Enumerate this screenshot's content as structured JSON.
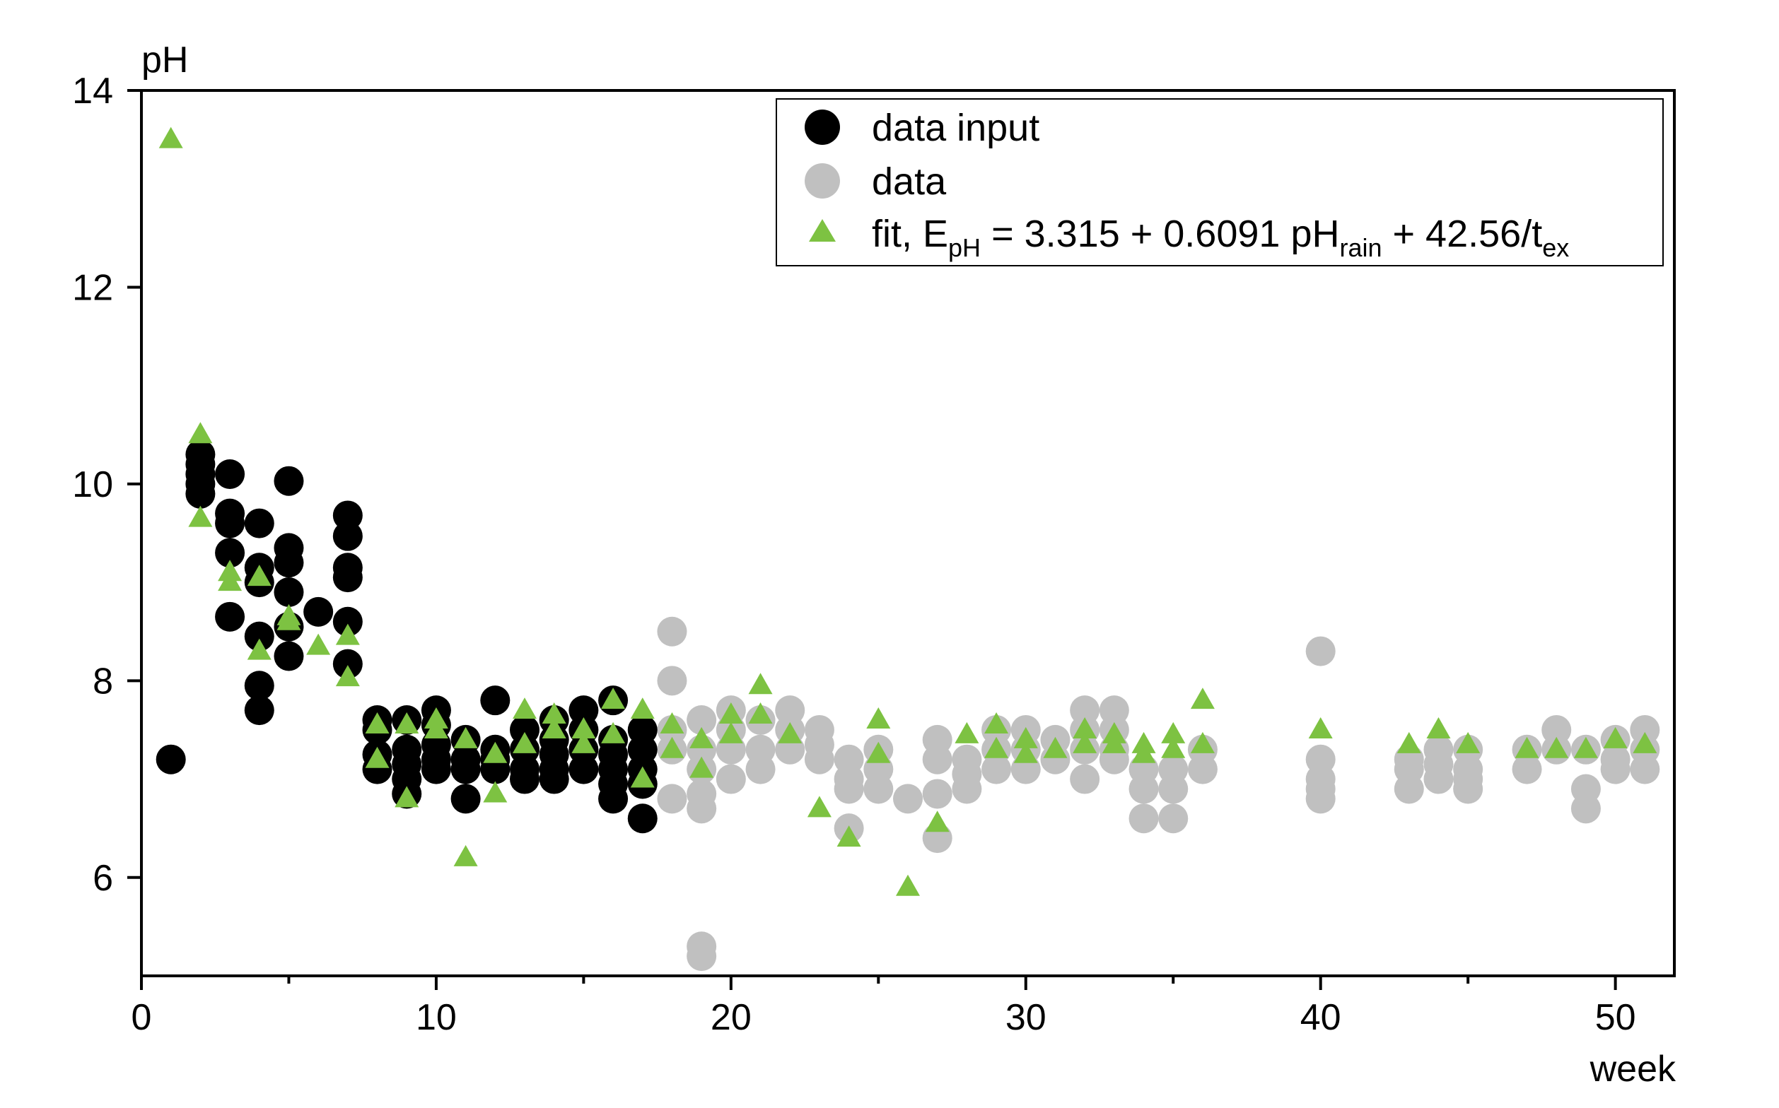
{
  "chart_data": {
    "type": "scatter",
    "xlabel": "week",
    "ylabel": "pH",
    "xlim": [
      0,
      52
    ],
    "ylim": [
      5,
      14
    ],
    "x_ticks": [
      0,
      10,
      20,
      30,
      40,
      50
    ],
    "y_ticks": [
      6,
      8,
      10,
      12,
      14
    ],
    "x_minor_ticks": [
      5,
      15,
      25,
      35,
      45
    ],
    "legend_position": "top-right",
    "grid": false,
    "colors": {
      "data_input": "#000000",
      "data": "#c0c0c0",
      "fit": "#7dc242"
    },
    "legend": {
      "data_input": "data input",
      "data": "data",
      "fit": {
        "prefix": "fit, E",
        "sub1": "pH",
        "mid": " = 3.315 + 0.6091 pH",
        "sub2": "rain",
        "mid2": " + 42.56/t",
        "sub3": "ex"
      }
    },
    "series": [
      {
        "name": "data input",
        "marker": "circle",
        "points": [
          [
            1,
            7.2
          ],
          [
            2,
            10.3
          ],
          [
            2,
            10.2
          ],
          [
            2,
            10.1
          ],
          [
            2,
            10.0
          ],
          [
            2,
            9.9
          ],
          [
            3,
            10.1
          ],
          [
            3,
            9.7
          ],
          [
            3,
            9.6
          ],
          [
            3,
            9.3
          ],
          [
            3,
            8.65
          ],
          [
            4,
            9.6
          ],
          [
            4,
            9.15
          ],
          [
            4,
            9.0
          ],
          [
            4,
            8.45
          ],
          [
            4,
            7.95
          ],
          [
            4,
            7.7
          ],
          [
            5,
            10.03
          ],
          [
            5,
            9.35
          ],
          [
            5,
            9.2
          ],
          [
            5,
            8.9
          ],
          [
            5,
            8.55
          ],
          [
            5,
            8.25
          ],
          [
            6,
            8.7
          ],
          [
            7,
            9.68
          ],
          [
            7,
            9.47
          ],
          [
            7,
            9.15
          ],
          [
            7,
            9.05
          ],
          [
            7,
            8.6
          ],
          [
            7,
            8.17
          ],
          [
            8,
            7.6
          ],
          [
            8,
            7.5
          ],
          [
            8,
            7.25
          ],
          [
            8,
            7.1
          ],
          [
            9,
            7.6
          ],
          [
            9,
            7.3
          ],
          [
            9,
            7.15
          ],
          [
            9,
            7.0
          ],
          [
            9,
            6.85
          ],
          [
            10,
            7.7
          ],
          [
            10,
            7.55
          ],
          [
            10,
            7.35
          ],
          [
            10,
            7.2
          ],
          [
            10,
            7.1
          ],
          [
            11,
            7.4
          ],
          [
            11,
            7.2
          ],
          [
            11,
            7.1
          ],
          [
            11,
            6.8
          ],
          [
            12,
            7.8
          ],
          [
            12,
            7.3
          ],
          [
            12,
            7.2
          ],
          [
            12,
            7.1
          ],
          [
            13,
            7.5
          ],
          [
            13,
            7.3
          ],
          [
            13,
            7.1
          ],
          [
            13,
            7.0
          ],
          [
            14,
            7.6
          ],
          [
            14,
            7.4
          ],
          [
            14,
            7.25
          ],
          [
            14,
            7.1
          ],
          [
            14,
            7.0
          ],
          [
            15,
            7.7
          ],
          [
            15,
            7.5
          ],
          [
            15,
            7.3
          ],
          [
            15,
            7.1
          ],
          [
            16,
            7.8
          ],
          [
            16,
            7.4
          ],
          [
            16,
            7.25
          ],
          [
            16,
            7.1
          ],
          [
            16,
            6.95
          ],
          [
            16,
            6.8
          ],
          [
            17,
            7.5
          ],
          [
            17,
            7.3
          ],
          [
            17,
            7.1
          ],
          [
            17,
            6.95
          ],
          [
            17,
            6.6
          ]
        ]
      },
      {
        "name": "data",
        "marker": "circle",
        "points": [
          [
            18,
            8.5
          ],
          [
            18,
            8.0
          ],
          [
            18,
            7.5
          ],
          [
            18,
            7.3
          ],
          [
            18,
            6.8
          ],
          [
            19,
            7.6
          ],
          [
            19,
            7.3
          ],
          [
            19,
            7.1
          ],
          [
            19,
            6.85
          ],
          [
            19,
            6.7
          ],
          [
            19,
            5.3
          ],
          [
            19,
            5.2
          ],
          [
            20,
            7.7
          ],
          [
            20,
            7.5
          ],
          [
            20,
            7.3
          ],
          [
            20,
            7.0
          ],
          [
            21,
            7.6
          ],
          [
            21,
            7.3
          ],
          [
            21,
            7.1
          ],
          [
            22,
            7.7
          ],
          [
            22,
            7.5
          ],
          [
            22,
            7.3
          ],
          [
            23,
            7.5
          ],
          [
            23,
            7.35
          ],
          [
            23,
            7.2
          ],
          [
            24,
            7.2
          ],
          [
            24,
            7.0
          ],
          [
            24,
            6.9
          ],
          [
            24,
            6.5
          ],
          [
            25,
            7.3
          ],
          [
            25,
            7.1
          ],
          [
            25,
            6.9
          ],
          [
            26,
            6.8
          ],
          [
            27,
            7.4
          ],
          [
            27,
            7.2
          ],
          [
            27,
            6.85
          ],
          [
            27,
            6.4
          ],
          [
            28,
            7.2
          ],
          [
            28,
            7.05
          ],
          [
            28,
            6.9
          ],
          [
            29,
            7.5
          ],
          [
            29,
            7.3
          ],
          [
            29,
            7.1
          ],
          [
            30,
            7.5
          ],
          [
            30,
            7.3
          ],
          [
            30,
            7.1
          ],
          [
            31,
            7.4
          ],
          [
            31,
            7.2
          ],
          [
            32,
            7.7
          ],
          [
            32,
            7.5
          ],
          [
            32,
            7.3
          ],
          [
            32,
            7.0
          ],
          [
            33,
            7.7
          ],
          [
            33,
            7.5
          ],
          [
            33,
            7.3
          ],
          [
            33,
            7.2
          ],
          [
            34,
            7.1
          ],
          [
            34,
            6.9
          ],
          [
            34,
            6.6
          ],
          [
            35,
            7.1
          ],
          [
            35,
            6.9
          ],
          [
            35,
            6.6
          ],
          [
            36,
            7.3
          ],
          [
            36,
            7.1
          ],
          [
            40,
            8.3
          ],
          [
            40,
            7.2
          ],
          [
            40,
            7.0
          ],
          [
            40,
            6.9
          ],
          [
            40,
            6.8
          ],
          [
            43,
            7.2
          ],
          [
            43,
            7.1
          ],
          [
            43,
            6.9
          ],
          [
            44,
            7.3
          ],
          [
            44,
            7.15
          ],
          [
            44,
            7.0
          ],
          [
            45,
            7.3
          ],
          [
            45,
            7.1
          ],
          [
            45,
            7.0
          ],
          [
            45,
            6.9
          ],
          [
            47,
            7.3
          ],
          [
            47,
            7.1
          ],
          [
            48,
            7.5
          ],
          [
            48,
            7.3
          ],
          [
            49,
            7.3
          ],
          [
            49,
            6.9
          ],
          [
            49,
            6.7
          ],
          [
            50,
            7.4
          ],
          [
            50,
            7.2
          ],
          [
            50,
            7.1
          ],
          [
            51,
            7.5
          ],
          [
            51,
            7.3
          ],
          [
            51,
            7.1
          ]
        ]
      },
      {
        "name": "fit, EpH = 3.315 + 0.6091 pHrain + 42.56/tex",
        "marker": "triangle",
        "points": [
          [
            1,
            13.5
          ],
          [
            2,
            10.5
          ],
          [
            2,
            9.65
          ],
          [
            3,
            9.1
          ],
          [
            3,
            9.0
          ],
          [
            4,
            9.05
          ],
          [
            4,
            8.3
          ],
          [
            5,
            8.65
          ],
          [
            5,
            8.6
          ],
          [
            6,
            8.35
          ],
          [
            7,
            8.45
          ],
          [
            7,
            8.03
          ],
          [
            8,
            7.55
          ],
          [
            8,
            7.2
          ],
          [
            9,
            7.55
          ],
          [
            9,
            6.8
          ],
          [
            10,
            7.6
          ],
          [
            10,
            7.5
          ],
          [
            11,
            7.4
          ],
          [
            11,
            6.2
          ],
          [
            12,
            7.25
          ],
          [
            12,
            6.85
          ],
          [
            13,
            7.7
          ],
          [
            13,
            7.35
          ],
          [
            14,
            7.65
          ],
          [
            14,
            7.5
          ],
          [
            15,
            7.5
          ],
          [
            15,
            7.35
          ],
          [
            16,
            7.8
          ],
          [
            16,
            7.45
          ],
          [
            17,
            7.7
          ],
          [
            17,
            7.0
          ],
          [
            18,
            7.55
          ],
          [
            18,
            7.3
          ],
          [
            19,
            7.4
          ],
          [
            19,
            7.1
          ],
          [
            20,
            7.65
          ],
          [
            20,
            7.45
          ],
          [
            21,
            7.95
          ],
          [
            21,
            7.65
          ],
          [
            22,
            7.45
          ],
          [
            23,
            6.7
          ],
          [
            24,
            6.4
          ],
          [
            25,
            7.6
          ],
          [
            25,
            7.25
          ],
          [
            26,
            5.9
          ],
          [
            27,
            6.55
          ],
          [
            28,
            7.45
          ],
          [
            29,
            7.55
          ],
          [
            29,
            7.3
          ],
          [
            30,
            7.4
          ],
          [
            30,
            7.25
          ],
          [
            31,
            7.3
          ],
          [
            32,
            7.5
          ],
          [
            32,
            7.35
          ],
          [
            33,
            7.45
          ],
          [
            33,
            7.35
          ],
          [
            34,
            7.35
          ],
          [
            34,
            7.25
          ],
          [
            35,
            7.45
          ],
          [
            35,
            7.3
          ],
          [
            36,
            7.8
          ],
          [
            36,
            7.35
          ],
          [
            40,
            7.5
          ],
          [
            43,
            7.35
          ],
          [
            44,
            7.5
          ],
          [
            45,
            7.35
          ],
          [
            47,
            7.3
          ],
          [
            48,
            7.3
          ],
          [
            49,
            7.3
          ],
          [
            50,
            7.4
          ],
          [
            51,
            7.35
          ]
        ]
      }
    ]
  }
}
